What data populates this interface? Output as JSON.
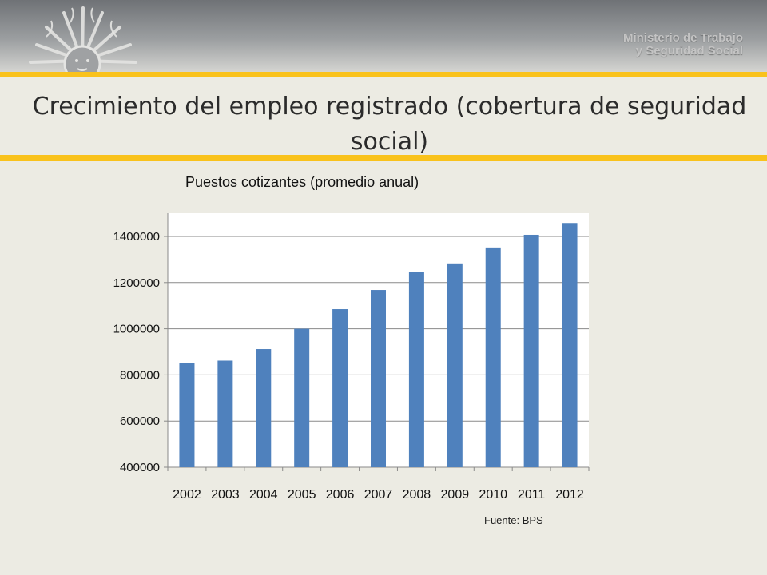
{
  "header": {
    "ministry_line1": "Ministerio de Trabajo",
    "ministry_line2": "y Seguridad Social"
  },
  "slide": {
    "title": "Crecimiento del empleo registrado (cobertura de seguridad social)",
    "source": "Fuente: BPS"
  },
  "colors": {
    "bar": "#4f81bd",
    "accent_band": "#f9c21c",
    "background": "#ecebe3"
  },
  "chart_data": {
    "type": "bar",
    "title": "Puestos cotizantes (promedio anual)",
    "xlabel": "",
    "ylabel": "",
    "categories": [
      "2002",
      "2003",
      "2004",
      "2005",
      "2006",
      "2007",
      "2008",
      "2009",
      "2010",
      "2011",
      "2012"
    ],
    "values": [
      852000,
      862000,
      912000,
      1000000,
      1085000,
      1168000,
      1245000,
      1283000,
      1352000,
      1407000,
      1458000
    ],
    "y_ticks": [
      400000,
      600000,
      800000,
      1000000,
      1200000,
      1400000
    ],
    "y_tick_labels": [
      "400000",
      "600000",
      "800000",
      "1000000",
      "1200000",
      "1400000"
    ],
    "ylim": [
      400000,
      1500000
    ],
    "grid": true,
    "legend": "none"
  }
}
